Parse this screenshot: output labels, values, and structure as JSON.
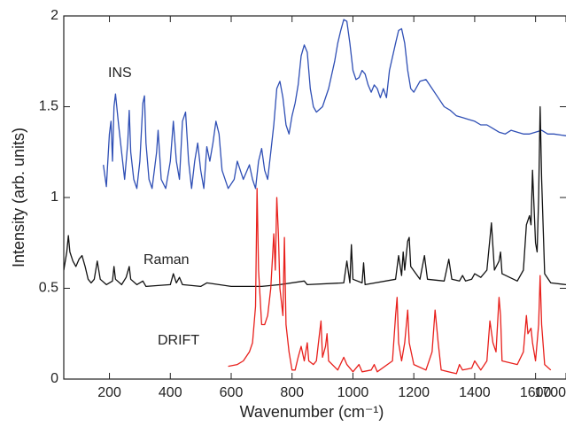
{
  "chart_data": {
    "type": "line",
    "x_label": "Wavenumber (cm⁻¹)",
    "y_label": "Intensity (arb. units)",
    "xlim": [
      50,
      1700
    ],
    "ylim": [
      0,
      2
    ],
    "xticks": [
      200,
      400,
      600,
      800,
      1000,
      1200,
      1400,
      1600,
      1700
    ],
    "yticks": [
      0,
      0.5,
      1,
      1.5,
      2
    ],
    "annotations": [
      "INS",
      "Raman",
      "DRIFT"
    ],
    "series": [
      {
        "name": "INS",
        "color": "#2f4fb5",
        "x": [
          180,
          190,
          200,
          205,
          210,
          215,
          220,
          230,
          240,
          250,
          260,
          265,
          270,
          280,
          290,
          300,
          310,
          315,
          320,
          330,
          340,
          355,
          360,
          370,
          385,
          400,
          410,
          420,
          430,
          440,
          450,
          460,
          470,
          480,
          490,
          500,
          510,
          520,
          530,
          540,
          550,
          560,
          570,
          590,
          610,
          620,
          630,
          640,
          660,
          670,
          680,
          690,
          700,
          710,
          720,
          730,
          740,
          750,
          760,
          770,
          780,
          790,
          800,
          810,
          820,
          830,
          840,
          850,
          860,
          870,
          880,
          900,
          920,
          940,
          950,
          960,
          970,
          980,
          990,
          1000,
          1010,
          1020,
          1030,
          1040,
          1050,
          1060,
          1070,
          1080,
          1090,
          1100,
          1110,
          1120,
          1140,
          1150,
          1160,
          1170,
          1180,
          1190,
          1200,
          1220,
          1240,
          1260,
          1280,
          1300,
          1320,
          1340,
          1360,
          1380,
          1400,
          1420,
          1440,
          1460,
          1480,
          1500,
          1520,
          1540,
          1560,
          1580,
          1600,
          1620,
          1640,
          1660,
          1700
        ],
        "values": [
          1.18,
          1.06,
          1.35,
          1.42,
          1.2,
          1.5,
          1.57,
          1.4,
          1.25,
          1.1,
          1.3,
          1.48,
          1.25,
          1.1,
          1.05,
          1.2,
          1.52,
          1.56,
          1.3,
          1.1,
          1.05,
          1.25,
          1.37,
          1.1,
          1.05,
          1.2,
          1.42,
          1.2,
          1.1,
          1.42,
          1.47,
          1.2,
          1.05,
          1.2,
          1.3,
          1.15,
          1.05,
          1.28,
          1.2,
          1.3,
          1.42,
          1.35,
          1.15,
          1.05,
          1.1,
          1.2,
          1.15,
          1.1,
          1.18,
          1.1,
          1.05,
          1.2,
          1.27,
          1.15,
          1.1,
          1.25,
          1.4,
          1.6,
          1.64,
          1.55,
          1.4,
          1.35,
          1.45,
          1.52,
          1.62,
          1.78,
          1.84,
          1.8,
          1.6,
          1.5,
          1.47,
          1.5,
          1.6,
          1.75,
          1.85,
          1.92,
          1.98,
          1.97,
          1.85,
          1.7,
          1.65,
          1.66,
          1.7,
          1.68,
          1.62,
          1.58,
          1.62,
          1.6,
          1.55,
          1.6,
          1.55,
          1.7,
          1.85,
          1.92,
          1.93,
          1.85,
          1.7,
          1.6,
          1.58,
          1.64,
          1.65,
          1.6,
          1.55,
          1.5,
          1.48,
          1.45,
          1.44,
          1.43,
          1.42,
          1.4,
          1.4,
          1.38,
          1.36,
          1.35,
          1.37,
          1.36,
          1.35,
          1.35,
          1.36,
          1.37,
          1.35,
          1.35,
          1.34
        ]
      },
      {
        "name": "Raman",
        "color": "#111111",
        "x": [
          50,
          60,
          65,
          70,
          80,
          90,
          100,
          110,
          120,
          130,
          140,
          150,
          160,
          170,
          190,
          210,
          215,
          220,
          240,
          255,
          265,
          270,
          290,
          310,
          320,
          400,
          410,
          420,
          430,
          440,
          500,
          520,
          600,
          700,
          760,
          840,
          850,
          970,
          980,
          990,
          995,
          1000,
          1030,
          1035,
          1040,
          1140,
          1150,
          1160,
          1165,
          1170,
          1180,
          1185,
          1190,
          1220,
          1235,
          1245,
          1300,
          1315,
          1325,
          1350,
          1360,
          1370,
          1390,
          1400,
          1420,
          1440,
          1455,
          1465,
          1480,
          1485,
          1490,
          1540,
          1560,
          1570,
          1580,
          1585,
          1590,
          1595,
          1600,
          1605,
          1610,
          1615,
          1620,
          1630,
          1650,
          1700
        ],
        "values": [
          0.6,
          0.7,
          0.79,
          0.7,
          0.65,
          0.62,
          0.66,
          0.68,
          0.62,
          0.55,
          0.53,
          0.55,
          0.65,
          0.55,
          0.52,
          0.54,
          0.62,
          0.55,
          0.52,
          0.56,
          0.62,
          0.55,
          0.52,
          0.54,
          0.51,
          0.52,
          0.58,
          0.53,
          0.56,
          0.52,
          0.51,
          0.53,
          0.51,
          0.51,
          0.52,
          0.54,
          0.52,
          0.53,
          0.65,
          0.53,
          0.74,
          0.55,
          0.53,
          0.64,
          0.52,
          0.55,
          0.68,
          0.57,
          0.7,
          0.6,
          0.76,
          0.78,
          0.62,
          0.55,
          0.68,
          0.55,
          0.54,
          0.66,
          0.55,
          0.54,
          0.57,
          0.54,
          0.55,
          0.58,
          0.56,
          0.6,
          0.86,
          0.6,
          0.65,
          0.7,
          0.58,
          0.54,
          0.6,
          0.85,
          0.9,
          0.85,
          1.15,
          0.95,
          0.75,
          0.7,
          1.0,
          1.5,
          1.1,
          0.58,
          0.53,
          0.52
        ]
      },
      {
        "name": "DRIFT",
        "color": "#e8201c",
        "x": [
          590,
          620,
          640,
          660,
          670,
          680,
          685,
          690,
          700,
          710,
          720,
          730,
          740,
          745,
          750,
          755,
          760,
          770,
          775,
          780,
          790,
          800,
          810,
          820,
          830,
          840,
          850,
          855,
          870,
          880,
          890,
          895,
          900,
          910,
          915,
          920,
          950,
          970,
          980,
          1000,
          1020,
          1030,
          1060,
          1070,
          1080,
          1130,
          1140,
          1145,
          1150,
          1160,
          1170,
          1180,
          1185,
          1200,
          1240,
          1260,
          1270,
          1280,
          1290,
          1340,
          1350,
          1360,
          1390,
          1400,
          1420,
          1440,
          1450,
          1460,
          1470,
          1480,
          1485,
          1490,
          1540,
          1560,
          1570,
          1575,
          1585,
          1590,
          1600,
          1610,
          1615,
          1620,
          1630,
          1650
        ],
        "values": [
          0.07,
          0.08,
          0.1,
          0.15,
          0.2,
          0.4,
          1.05,
          0.6,
          0.3,
          0.3,
          0.35,
          0.5,
          0.8,
          0.6,
          1.0,
          0.8,
          0.5,
          0.35,
          0.78,
          0.3,
          0.15,
          0.05,
          0.05,
          0.12,
          0.18,
          0.1,
          0.2,
          0.1,
          0.08,
          0.1,
          0.25,
          0.32,
          0.12,
          0.18,
          0.25,
          0.1,
          0.05,
          0.12,
          0.08,
          0.04,
          0.08,
          0.04,
          0.05,
          0.08,
          0.04,
          0.1,
          0.35,
          0.45,
          0.2,
          0.1,
          0.2,
          0.38,
          0.2,
          0.08,
          0.05,
          0.15,
          0.38,
          0.2,
          0.05,
          0.03,
          0.08,
          0.05,
          0.06,
          0.1,
          0.05,
          0.1,
          0.32,
          0.2,
          0.15,
          0.45,
          0.35,
          0.1,
          0.08,
          0.15,
          0.35,
          0.25,
          0.28,
          0.2,
          0.1,
          0.3,
          0.57,
          0.3,
          0.08,
          0.05
        ]
      }
    ]
  }
}
